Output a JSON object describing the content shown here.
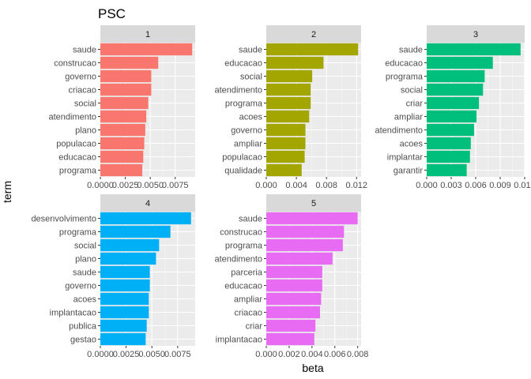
{
  "chart_data": {
    "type": "bar",
    "orientation": "horizontal",
    "title": "PSC",
    "xlabel": "beta",
    "ylabel": "term",
    "grid": true,
    "legend": "none",
    "panels": [
      {
        "label": "1",
        "color": "#F8766D",
        "categories": [
          "saude",
          "construcao",
          "governo",
          "criacao",
          "social",
          "atendimento",
          "plano",
          "populacao",
          "educacao",
          "programa"
        ],
        "values": [
          0.0092,
          0.0058,
          0.0051,
          0.0051,
          0.0048,
          0.0046,
          0.0045,
          0.0044,
          0.0043,
          0.0042
        ],
        "xlim": [
          0,
          0.0095
        ],
        "ticks": [
          0,
          0.0025,
          0.005,
          0.0075
        ],
        "tick_labels": [
          "0.0000",
          "0.0025",
          "0.0050",
          "0.0075"
        ]
      },
      {
        "label": "2",
        "color": "#A3A500",
        "categories": [
          "saude",
          "educacao",
          "social",
          "atendimento",
          "programa",
          "acoes",
          "governo",
          "ampliar",
          "populacao",
          "qualidade"
        ],
        "values": [
          0.0122,
          0.0076,
          0.0061,
          0.0059,
          0.0059,
          0.0057,
          0.0052,
          0.0052,
          0.0051,
          0.0047
        ],
        "xlim": [
          0,
          0.0126
        ],
        "ticks": [
          0,
          0.004,
          0.008,
          0.012
        ],
        "tick_labels": [
          "0.000",
          "0.004",
          "0.008",
          "0.012"
        ]
      },
      {
        "label": "3",
        "color": "#00BF7D",
        "categories": [
          "saude",
          "educacao",
          "programa",
          "social",
          "criar",
          "ampliar",
          "atendimento",
          "acoes",
          "implantar",
          "garantir"
        ],
        "values": [
          0.0115,
          0.0081,
          0.0071,
          0.0069,
          0.0064,
          0.0061,
          0.0058,
          0.0054,
          0.0053,
          0.0049
        ],
        "xlim": [
          0,
          0.012
        ],
        "ticks": [
          0,
          0.003,
          0.006,
          0.009,
          0.012
        ],
        "tick_labels": [
          "0.000",
          "0.003",
          "0.006",
          "0.009",
          "0.012"
        ]
      },
      {
        "label": "4",
        "color": "#00B0F6",
        "categories": [
          "desenvolvimento",
          "programa",
          "social",
          "plano",
          "saude",
          "governo",
          "acoes",
          "implantacao",
          "publica",
          "gestao"
        ],
        "values": [
          0.0088,
          0.0068,
          0.0057,
          0.0054,
          0.0048,
          0.0048,
          0.0047,
          0.0047,
          0.0045,
          0.0044
        ],
        "xlim": [
          0,
          0.0092
        ],
        "ticks": [
          0,
          0.0025,
          0.005,
          0.0075
        ],
        "tick_labels": [
          "0.0000",
          "0.0025",
          "0.0050",
          "0.0075"
        ]
      },
      {
        "label": "5",
        "color": "#E76BF3",
        "categories": [
          "saude",
          "construcao",
          "programa",
          "atendimento",
          "parceria",
          "educacao",
          "ampliar",
          "criacao",
          "criar",
          "implantacao"
        ],
        "values": [
          0.008,
          0.0068,
          0.0067,
          0.0058,
          0.0049,
          0.0049,
          0.0048,
          0.0047,
          0.0043,
          0.0042
        ],
        "xlim": [
          0,
          0.0083
        ],
        "ticks": [
          0,
          0.002,
          0.004,
          0.006,
          0.008
        ],
        "tick_labels": [
          "0.000",
          "0.002",
          "0.004",
          "0.006",
          "0.008"
        ]
      }
    ]
  }
}
